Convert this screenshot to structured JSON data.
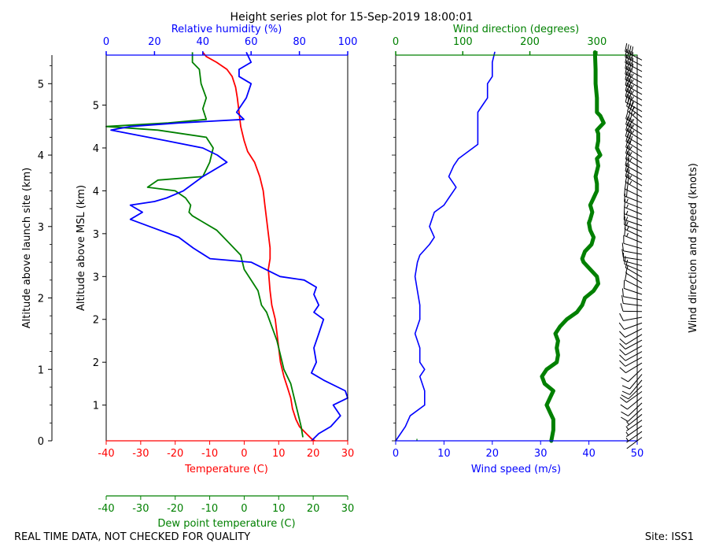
{
  "figure": {
    "title": "Height series plot for 15-Sep-2019 18:00:01",
    "footer_left": "REAL TIME DATA, NOT CHECKED FOR QUALITY",
    "footer_right": "Site: ISS1"
  },
  "colors": {
    "temperature": "#ff0000",
    "dewpoint": "#008000",
    "humidity": "#0000ff",
    "wind_speed": "#0000ff",
    "wind_direction": "#008000",
    "barbs": "#000000"
  },
  "chart_data": [
    {
      "type": "line",
      "title": "Thermodynamic profile",
      "xlabel": "Temperature (C)",
      "xlabel_dewpoint": "Dew point temperature (C)",
      "xlabel_top": "Relative humidity (%)",
      "ylabel_left": "Altitude above launch site (km)",
      "ylabel": "Altitude above MSL (km)",
      "xlim": [
        -40,
        30
      ],
      "xlim_top": [
        0,
        100
      ],
      "ylim": [
        0,
        5.4
      ],
      "x_ticks": [
        -40,
        -30,
        -20,
        -10,
        0,
        10,
        20,
        30
      ],
      "x_ticks_top": [
        0,
        20,
        40,
        60,
        80,
        100
      ],
      "launch_site_ticks": [
        0,
        1,
        2,
        3,
        4,
        5
      ],
      "msl_tick_labels": [
        "1",
        "2",
        "2",
        "3",
        "3",
        "4",
        "4",
        "5"
      ],
      "series": [
        {
          "name": "Temperature",
          "axis": "temperature",
          "points": [
            [
              20.5,
              0
            ],
            [
              19.5,
              0.03
            ],
            [
              18,
              0.1
            ],
            [
              16,
              0.2
            ],
            [
              15,
              0.3
            ],
            [
              14,
              0.45
            ],
            [
              13.5,
              0.6
            ],
            [
              12.5,
              0.75
            ],
            [
              11.5,
              0.9
            ],
            [
              10.5,
              1.1
            ],
            [
              10,
              1.3
            ],
            [
              9.5,
              1.5
            ],
            [
              9,
              1.7
            ],
            [
              8,
              1.9
            ],
            [
              7.5,
              2.1
            ],
            [
              7,
              2.4
            ],
            [
              7.5,
              2.55
            ],
            [
              7.5,
              2.7
            ],
            [
              7,
              2.9
            ],
            [
              6.5,
              3.1
            ],
            [
              6,
              3.3
            ],
            [
              5.5,
              3.5
            ],
            [
              4.5,
              3.7
            ],
            [
              3,
              3.9
            ],
            [
              1,
              4.05
            ],
            [
              0,
              4.2
            ],
            [
              -1,
              4.4
            ],
            [
              -1.5,
              4.6
            ],
            [
              -2,
              4.8
            ],
            [
              -2.5,
              4.95
            ],
            [
              -3.5,
              5.1
            ],
            [
              -5,
              5.2
            ],
            [
              -8,
              5.3
            ],
            [
              -11,
              5.38
            ],
            [
              -12,
              5.44
            ]
          ]
        },
        {
          "name": "Dew point",
          "axis": "temperature",
          "points": [
            [
              17,
              0.05
            ],
            [
              16.5,
              0.2
            ],
            [
              15.5,
              0.4
            ],
            [
              14.5,
              0.6
            ],
            [
              13.5,
              0.8
            ],
            [
              11.5,
              1
            ],
            [
              10.5,
              1.2
            ],
            [
              9.5,
              1.4
            ],
            [
              8,
              1.6
            ],
            [
              6.5,
              1.8
            ],
            [
              5,
              1.9
            ],
            [
              4,
              2.1
            ],
            [
              2,
              2.25
            ],
            [
              0,
              2.4
            ],
            [
              -1,
              2.6
            ],
            [
              -5,
              2.8
            ],
            [
              -8,
              2.95
            ],
            [
              -15,
              3.15
            ],
            [
              -16,
              3.2
            ],
            [
              -15.5,
              3.3
            ],
            [
              -17,
              3.4
            ],
            [
              -20,
              3.5
            ],
            [
              -28,
              3.55
            ],
            [
              -25,
              3.65
            ],
            [
              -12,
              3.7
            ],
            [
              -10,
              3.9
            ],
            [
              -9,
              4.1
            ],
            [
              -11,
              4.25
            ],
            [
              -25,
              4.35
            ],
            [
              -40,
              4.4
            ],
            [
              -22,
              4.45
            ],
            [
              -11,
              4.5
            ],
            [
              -12,
              4.65
            ],
            [
              -11,
              4.8
            ],
            [
              -12.5,
              5
            ],
            [
              -13,
              5.2
            ],
            [
              -15,
              5.3
            ],
            [
              -15,
              5.44
            ]
          ]
        },
        {
          "name": "Relative humidity",
          "axis": "humidity",
          "points": [
            [
              85,
              0
            ],
            [
              88,
              0.1
            ],
            [
              93,
              0.2
            ],
            [
              97,
              0.35
            ],
            [
              94,
              0.5
            ],
            [
              100,
              0.6
            ],
            [
              99,
              0.7
            ],
            [
              90,
              0.85
            ],
            [
              85,
              0.95
            ],
            [
              87,
              1.1
            ],
            [
              86,
              1.3
            ],
            [
              88,
              1.5
            ],
            [
              90,
              1.7
            ],
            [
              86,
              1.8
            ],
            [
              88,
              1.9
            ],
            [
              86,
              2.05
            ],
            [
              87,
              2.15
            ],
            [
              82,
              2.25
            ],
            [
              72,
              2.3
            ],
            [
              60,
              2.5
            ],
            [
              43,
              2.55
            ],
            [
              36,
              2.7
            ],
            [
              30,
              2.85
            ],
            [
              18,
              3
            ],
            [
              10,
              3.1
            ],
            [
              15,
              3.2
            ],
            [
              10,
              3.3
            ],
            [
              20,
              3.35
            ],
            [
              25,
              3.4
            ],
            [
              32,
              3.5
            ],
            [
              40,
              3.7
            ],
            [
              50,
              3.9
            ],
            [
              46,
              4
            ],
            [
              40,
              4.1
            ],
            [
              25,
              4.2
            ],
            [
              2,
              4.35
            ],
            [
              10,
              4.4
            ],
            [
              30,
              4.45
            ],
            [
              57,
              4.5
            ],
            [
              54,
              4.6
            ],
            [
              58,
              4.8
            ],
            [
              60,
              5
            ],
            [
              55,
              5.1
            ],
            [
              55,
              5.2
            ],
            [
              60,
              5.3
            ],
            [
              58,
              5.44
            ]
          ]
        }
      ]
    },
    {
      "type": "line",
      "title": "Wind profile",
      "xlabel": "Wind speed (m/s)",
      "xlabel_top": "Wind direction (degrees)",
      "ylabel_right": "Wind direction and speed (knots)",
      "xlim": [
        0,
        50
      ],
      "xlim_top": [
        0,
        360
      ],
      "ylim": [
        0,
        5.4
      ],
      "x_ticks": [
        0,
        10,
        20,
        30,
        40,
        50
      ],
      "x_ticks_top": [
        0,
        100,
        200,
        300
      ],
      "series": [
        {
          "name": "Wind speed",
          "axis": "speed",
          "points": [
            [
              0,
              0
            ],
            [
              2,
              0.2
            ],
            [
              3,
              0.35
            ],
            [
              6,
              0.5
            ],
            [
              6,
              0.7
            ],
            [
              5,
              0.9
            ],
            [
              6,
              1
            ],
            [
              5,
              1.1
            ],
            [
              5,
              1.3
            ],
            [
              4,
              1.5
            ],
            [
              5,
              1.7
            ],
            [
              5,
              1.9
            ],
            [
              4.5,
              2.1
            ],
            [
              4,
              2.3
            ],
            [
              4.5,
              2.5
            ],
            [
              5,
              2.6
            ],
            [
              7,
              2.75
            ],
            [
              8,
              2.85
            ],
            [
              7,
              3
            ],
            [
              7.5,
              3.1
            ],
            [
              8,
              3.2
            ],
            [
              10,
              3.3
            ],
            [
              11,
              3.4
            ],
            [
              12,
              3.5
            ],
            [
              12.5,
              3.55
            ],
            [
              12,
              3.6
            ],
            [
              11,
              3.7
            ],
            [
              12,
              3.85
            ],
            [
              13,
              3.95
            ],
            [
              14,
              4
            ],
            [
              16,
              4.1
            ],
            [
              17,
              4.15
            ],
            [
              17,
              4.3
            ],
            [
              17,
              4.45
            ],
            [
              17,
              4.6
            ],
            [
              18,
              4.7
            ],
            [
              19,
              4.8
            ],
            [
              19,
              5
            ],
            [
              20,
              5.1
            ],
            [
              20,
              5.3
            ],
            [
              20.5,
              5.44
            ]
          ]
        },
        {
          "name": "Wind direction",
          "axis": "direction",
          "points": [
            [
              232,
              0
            ],
            [
              235,
              0.15
            ],
            [
              235,
              0.3
            ],
            [
              230,
              0.4
            ],
            [
              225,
              0.5
            ],
            [
              230,
              0.6
            ],
            [
              235,
              0.7
            ],
            [
              222,
              0.8
            ],
            [
              218,
              0.9
            ],
            [
              225,
              1
            ],
            [
              240,
              1.1
            ],
            [
              242,
              1.2
            ],
            [
              240,
              1.3
            ],
            [
              242,
              1.4
            ],
            [
              238,
              1.5
            ],
            [
              245,
              1.6
            ],
            [
              255,
              1.7
            ],
            [
              270,
              1.8
            ],
            [
              278,
              1.9
            ],
            [
              282,
              2
            ],
            [
              295,
              2.1
            ],
            [
              302,
              2.2
            ],
            [
              300,
              2.3
            ],
            [
              290,
              2.4
            ],
            [
              280,
              2.5
            ],
            [
              278,
              2.55
            ],
            [
              282,
              2.65
            ],
            [
              292,
              2.75
            ],
            [
              295,
              2.85
            ],
            [
              290,
              2.95
            ],
            [
              288,
              3.05
            ],
            [
              290,
              3.1
            ],
            [
              293,
              3.2
            ],
            [
              290,
              3.3
            ],
            [
              295,
              3.4
            ],
            [
              300,
              3.5
            ],
            [
              300,
              3.6
            ],
            [
              298,
              3.7
            ],
            [
              302,
              3.85
            ],
            [
              300,
              3.95
            ],
            [
              305,
              4
            ],
            [
              300,
              4.1
            ],
            [
              302,
              4.2
            ],
            [
              302,
              4.3
            ],
            [
              300,
              4.35
            ],
            [
              305,
              4.4
            ],
            [
              310,
              4.45
            ],
            [
              305,
              4.55
            ],
            [
              300,
              4.6
            ],
            [
              300,
              4.8
            ],
            [
              298,
              5
            ],
            [
              298,
              5.2
            ],
            [
              297,
              5.44
            ]
          ]
        }
      ]
    }
  ]
}
